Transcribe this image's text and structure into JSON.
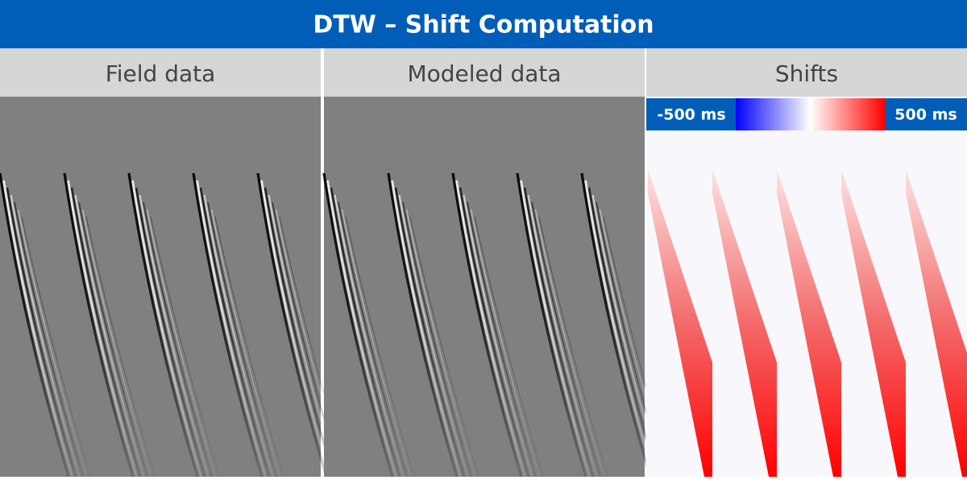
{
  "header": {
    "title": "DTW – Shift Computation"
  },
  "panels": [
    {
      "label": "Field data"
    },
    {
      "label": "Modeled data"
    },
    {
      "label": "Shifts"
    }
  ],
  "colorbar": {
    "min_label": "-500 ms",
    "max_label": "500 ms"
  }
}
